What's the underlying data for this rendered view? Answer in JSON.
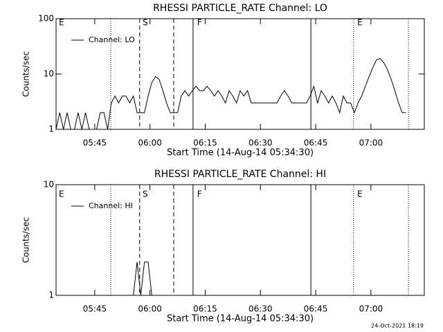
{
  "chart_data": [
    {
      "type": "line",
      "title": "RHESSI PARTICLE_RATE Channel: LO",
      "xlabel": "Start Time (14-Aug-14 05:34:30)",
      "ylabel": "Counts/sec",
      "x": [
        0,
        1,
        2,
        3,
        4,
        5,
        6,
        7,
        8,
        9,
        10,
        11,
        12,
        13,
        14,
        15,
        16,
        17,
        18,
        19,
        20,
        21,
        22,
        23,
        24,
        25,
        26,
        27,
        28,
        29,
        30,
        31,
        32,
        33,
        34,
        35,
        36,
        37,
        38,
        39,
        40,
        41,
        42,
        43,
        44,
        45,
        46,
        47,
        48,
        49,
        50,
        51,
        52,
        53,
        54,
        55,
        56,
        57,
        58,
        59,
        60,
        61,
        62,
        63,
        64,
        65,
        66,
        67,
        68,
        69,
        70,
        71,
        72,
        73,
        74,
        75,
        76,
        77,
        78,
        79,
        80,
        81,
        82,
        83,
        84,
        85,
        86,
        87,
        88,
        89,
        90,
        91,
        92,
        93,
        94,
        95
      ],
      "series": [
        {
          "name": "Channel: LO",
          "color": "#000000",
          "values": [
            1,
            2,
            1,
            2,
            1,
            1,
            2,
            1,
            2,
            1,
            1,
            1,
            2,
            2,
            1,
            3,
            4,
            3,
            4,
            4,
            3,
            4,
            2,
            2,
            2,
            4,
            7,
            9,
            8,
            5,
            3,
            2,
            2,
            2,
            4,
            5,
            4,
            5,
            6,
            5,
            5,
            6,
            5,
            4,
            5,
            4,
            3,
            5,
            4,
            3,
            5,
            4,
            5,
            3,
            3,
            3,
            3,
            3,
            3,
            3,
            3,
            4,
            5,
            4,
            3,
            3,
            3,
            3,
            3,
            4,
            6,
            3,
            5,
            4,
            3,
            4,
            3,
            2,
            4,
            3,
            3,
            2,
            3,
            4,
            6,
            9,
            13,
            18,
            19,
            16,
            12,
            8,
            5,
            3,
            2,
            2
          ]
        }
      ],
      "xlim": [
        0,
        100
      ],
      "xticks": [
        {
          "value": 10.5,
          "label": "05:45"
        },
        {
          "value": 25.5,
          "label": "06:00"
        },
        {
          "value": 40.5,
          "label": "06:15"
        },
        {
          "value": 55.5,
          "label": "06:30"
        },
        {
          "value": 70.5,
          "label": "06:45"
        },
        {
          "value": 85.5,
          "label": "07:00"
        }
      ],
      "ylim": [
        1,
        100
      ],
      "yticks": [
        1,
        10,
        100
      ],
      "log_y": true,
      "event_lines": [
        {
          "x": 14.85,
          "style": "dotted"
        },
        {
          "x": 22.7,
          "style": "dashed"
        },
        {
          "x": 31.95,
          "style": "dashed"
        },
        {
          "x": 37.2,
          "style": "solid"
        },
        {
          "x": 69.2,
          "style": "solid"
        },
        {
          "x": 80.8,
          "style": "dotted"
        },
        {
          "x": 95.7,
          "style": "dotted"
        }
      ],
      "event_labels": [
        {
          "x": 0.75,
          "text": "E"
        },
        {
          "x": 23.5,
          "text": "S"
        },
        {
          "x": 38.3,
          "text": "F"
        },
        {
          "x": 81.8,
          "text": "E"
        }
      ]
    },
    {
      "type": "line",
      "title": "RHESSI PARTICLE_RATE Channel: HI",
      "xlabel": "Start Time (14-Aug-14 05:34:30)",
      "ylabel": "Counts/sec",
      "x": [
        21,
        22,
        23,
        24,
        25,
        26
      ],
      "series": [
        {
          "name": "Channel: HI",
          "color": "#000000",
          "values": [
            1,
            2,
            1,
            2,
            2,
            1
          ]
        }
      ],
      "xlim": [
        0,
        100
      ],
      "xticks": [
        {
          "value": 10.5,
          "label": "05:45"
        },
        {
          "value": 25.5,
          "label": "06:00"
        },
        {
          "value": 40.5,
          "label": "06:15"
        },
        {
          "value": 55.5,
          "label": "06:30"
        },
        {
          "value": 70.5,
          "label": "06:45"
        },
        {
          "value": 85.5,
          "label": "07:00"
        }
      ],
      "ylim": [
        1,
        10
      ],
      "yticks": [
        1,
        10
      ],
      "log_y": true,
      "event_lines": [
        {
          "x": 14.85,
          "style": "dotted"
        },
        {
          "x": 22.7,
          "style": "dashed"
        },
        {
          "x": 31.95,
          "style": "dashed"
        },
        {
          "x": 37.2,
          "style": "solid"
        },
        {
          "x": 69.2,
          "style": "solid"
        },
        {
          "x": 80.8,
          "style": "dotted"
        },
        {
          "x": 95.7,
          "style": "dotted"
        }
      ],
      "event_labels": [
        {
          "x": 0.75,
          "text": "E"
        },
        {
          "x": 23.5,
          "text": "S"
        },
        {
          "x": 38.3,
          "text": "F"
        },
        {
          "x": 81.8,
          "text": "E"
        }
      ]
    }
  ],
  "footer": "24-Oct-2021 18:19"
}
